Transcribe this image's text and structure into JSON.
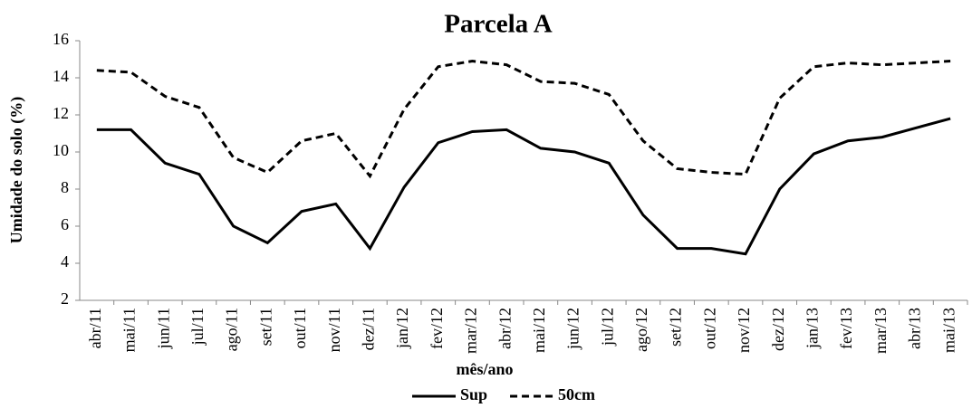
{
  "chart_data": {
    "type": "line",
    "title": "Parcela A",
    "x_label": "mês/ano",
    "y_label": "Umidade do solo (%)",
    "categories": [
      "abr/11",
      "mai/11",
      "jun/11",
      "jul/11",
      "ago/11",
      "set/11",
      "out/11",
      "nov/11",
      "dez/11",
      "jan/12",
      "fev/12",
      "mar/12",
      "abr/12",
      "mai/12",
      "jun/12",
      "jul/12",
      "ago/12",
      "set/12",
      "out/12",
      "nov/12",
      "dez/12",
      "jan/13",
      "fev/13",
      "mar/13",
      "abr/13",
      "mai/13"
    ],
    "series": [
      {
        "name": "Sup",
        "color": "#000000",
        "linestyle": "solid",
        "values": [
          11.2,
          11.2,
          9.4,
          8.8,
          6.0,
          5.1,
          6.8,
          7.2,
          4.8,
          8.1,
          10.5,
          11.1,
          11.2,
          10.2,
          10.0,
          9.4,
          6.6,
          4.8,
          4.8,
          4.5,
          8.0,
          9.9,
          10.6,
          10.8,
          11.3,
          11.8
        ]
      },
      {
        "name": "50cm",
        "color": "#000000",
        "linestyle": "dashed",
        "values": [
          14.4,
          14.3,
          13.0,
          12.4,
          9.7,
          8.9,
          10.6,
          11.0,
          8.7,
          12.3,
          14.6,
          14.9,
          14.7,
          13.8,
          13.7,
          13.1,
          10.6,
          9.1,
          8.9,
          8.8,
          12.9,
          14.6,
          14.8,
          14.7,
          14.8,
          14.9
        ]
      }
    ],
    "ylim": [
      2,
      16
    ],
    "yticks": [
      2,
      4,
      6,
      8,
      10,
      12,
      14,
      16
    ],
    "grid": false,
    "legend": "bottom"
  }
}
